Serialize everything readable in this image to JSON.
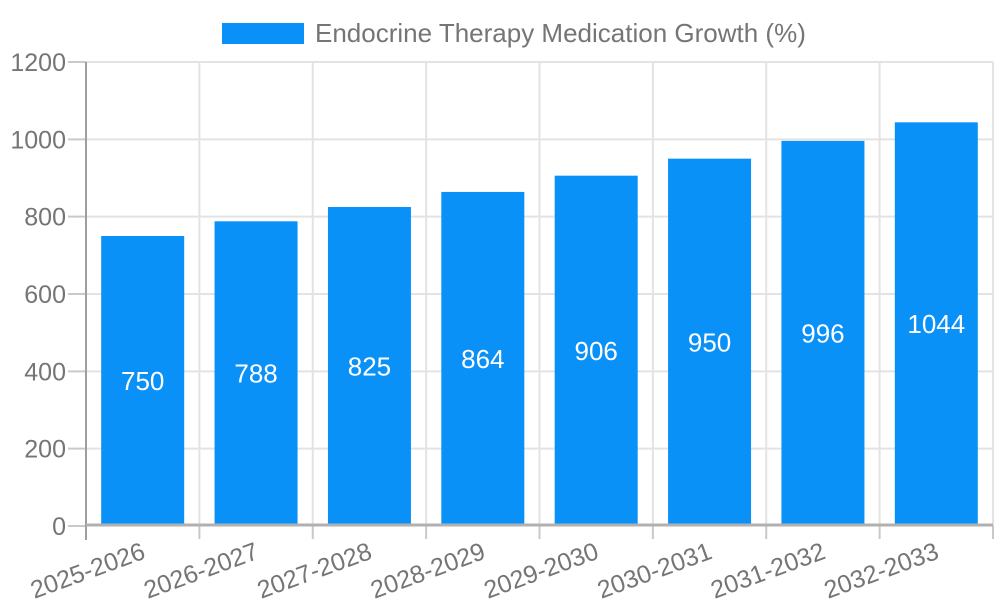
{
  "chart_data": {
    "type": "bar",
    "title": "Endocrine Therapy Medication Growth (%)",
    "categories": [
      "2025-2026",
      "2026-2027",
      "2027-2028",
      "2028-2029",
      "2029-2030",
      "2030-2031",
      "2031-2032",
      "2032-2033"
    ],
    "values": [
      750,
      788,
      825,
      864,
      906,
      950,
      996,
      1044
    ],
    "xlabel": "",
    "ylabel": "",
    "ylim": [
      0,
      1200
    ],
    "ytick_step": 200,
    "yticks": [
      0,
      200,
      400,
      600,
      800,
      1000,
      1200
    ],
    "grid": true,
    "legend_position": "top",
    "x_label_rotation_deg": -20,
    "colors": {
      "bar": "#0A91F8",
      "value_label": "#FFFFFF",
      "axis_text": "#757575",
      "gridline": "#E3E3E3",
      "tick": "#C9C9C9",
      "axis_line": "#9E9E9E",
      "baseline": "#B0B0B0",
      "background": "#FFFFFF"
    }
  }
}
